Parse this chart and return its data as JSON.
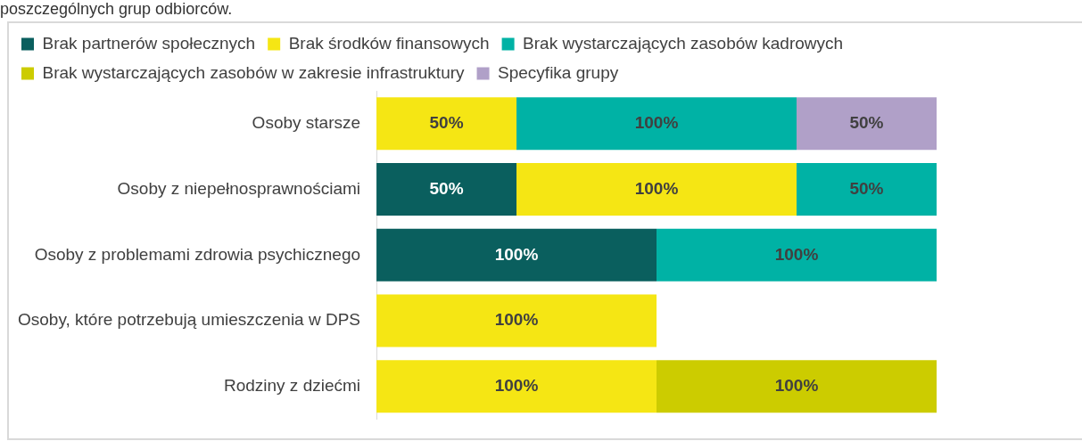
{
  "chart_data": {
    "type": "bar",
    "orientation": "horizontal",
    "stacked": true,
    "title": "poszczególnych grup odbiorców.",
    "categories": [
      "Osoby starsze",
      "Osoby z niepełnosprawnościami",
      "Osoby z problemami zdrowia psychicznego",
      "Osoby, które potrzebują umieszczenia w DPS",
      "Rodziny z dziećmi"
    ],
    "series": [
      {
        "name": "Brak partnerów społecznych",
        "color": "#0a5f5e",
        "values": [
          0,
          50,
          100,
          0,
          0
        ],
        "value_labels": [
          null,
          "50%",
          "100%",
          null,
          null
        ]
      },
      {
        "name": "Brak środków finansowych",
        "color": "#f5e614",
        "values": [
          50,
          100,
          0,
          100,
          100
        ],
        "value_labels": [
          "50%",
          "100%",
          null,
          "100%",
          "100%"
        ]
      },
      {
        "name": "Brak wystarczających zasobów kadrowych",
        "color": "#00b2a5",
        "values": [
          100,
          50,
          100,
          0,
          0
        ],
        "value_labels": [
          "100%",
          "50%",
          "100%",
          null,
          null
        ]
      },
      {
        "name": "Brak wystarczających zasobów w zakresie infrastruktury",
        "color": "#cccc00",
        "values": [
          0,
          0,
          0,
          0,
          100
        ],
        "value_labels": [
          null,
          null,
          null,
          null,
          "100%"
        ]
      },
      {
        "name": "Specyfika grupy",
        "color": "#b0a0c8",
        "values": [
          50,
          0,
          0,
          0,
          0
        ],
        "value_labels": [
          "50%",
          null,
          null,
          null,
          null
        ]
      }
    ],
    "legend": "top left",
    "tick_labels": "y"
  }
}
